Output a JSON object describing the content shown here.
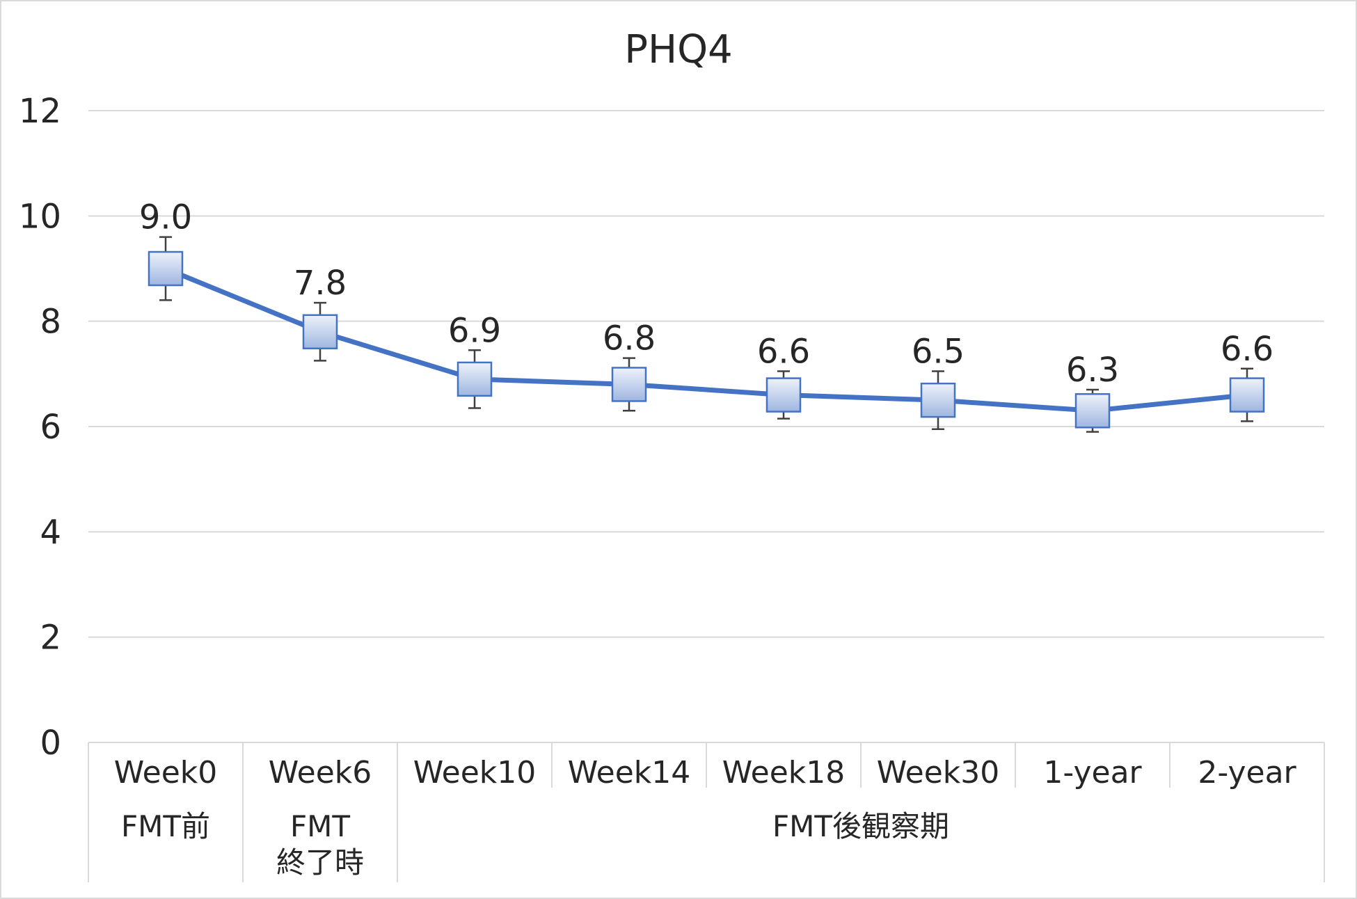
{
  "chart_data": {
    "type": "line",
    "title": "PHQ4",
    "categories": [
      "Week0",
      "Week6",
      "Week10",
      "Week14",
      "Week18",
      "Week30",
      "1-year",
      "2-year"
    ],
    "category_groups": [
      {
        "label": [
          "FMT前"
        ],
        "span": [
          0,
          0
        ]
      },
      {
        "label": [
          "FMT",
          "終了時"
        ],
        "span": [
          1,
          1
        ]
      },
      {
        "label": [
          "FMT後観察期"
        ],
        "span": [
          2,
          7
        ]
      }
    ],
    "series": [
      {
        "values": [
          9.0,
          7.8,
          6.9,
          6.8,
          6.6,
          6.5,
          6.3,
          6.6
        ],
        "data_labels": [
          "9.0",
          "7.8",
          "6.9",
          "6.8",
          "6.6",
          "6.5",
          "6.3",
          "6.6"
        ],
        "error": [
          0.6,
          0.55,
          0.55,
          0.5,
          0.45,
          0.55,
          0.4,
          0.5
        ],
        "marker": "square",
        "color": "#4472C4"
      }
    ],
    "ylim": [
      0,
      12
    ],
    "yticks": [
      "0",
      "2",
      "4",
      "6",
      "8",
      "10",
      "12"
    ],
    "grid": true,
    "legend": "none",
    "colors": {
      "line": "#4472C4",
      "grid": "#D9D9D9",
      "error_bar": "#404040"
    }
  }
}
